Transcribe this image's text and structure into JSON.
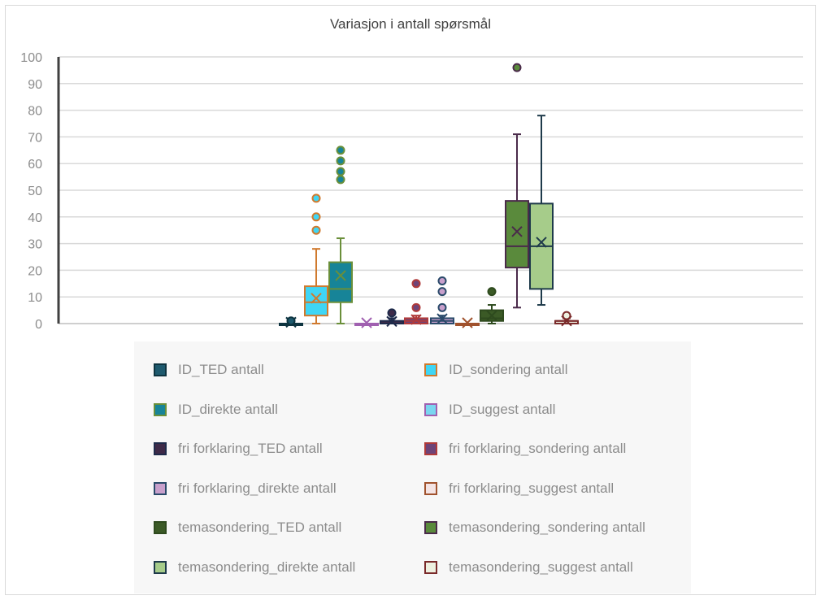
{
  "chart_data": {
    "type": "box",
    "title": "Variasjon i antall spørsmål",
    "xlabel": "",
    "ylabel": "",
    "ylim": [
      0,
      100
    ],
    "yticks": [
      0,
      10,
      20,
      30,
      40,
      50,
      60,
      70,
      80,
      90,
      100
    ],
    "grid": true,
    "legend_position": "bottom",
    "series": [
      {
        "name": "ID_TED antall",
        "fill": "#1e5a6e",
        "stroke": "#0e3440",
        "min": 0,
        "q1": 0,
        "median": 0,
        "q3": 0,
        "max": 0,
        "mean": 0.5,
        "outliers": [
          1
        ]
      },
      {
        "name": "ID_sondering antall",
        "fill": "#3fd6f5",
        "stroke": "#d07a2e",
        "min": 0,
        "q1": 3,
        "median": 8,
        "q3": 14,
        "max": 28,
        "mean": 9.5,
        "outliers": [
          35,
          40,
          47
        ]
      },
      {
        "name": "ID_direkte antall",
        "fill": "#178498",
        "stroke": "#6a8f3a",
        "min": 0,
        "q1": 8,
        "median": 13,
        "q3": 23,
        "max": 32,
        "mean": 18,
        "outliers": [
          54,
          57,
          61,
          65
        ]
      },
      {
        "name": "ID_suggest antall",
        "fill": "#7ad6f0",
        "stroke": "#a060b0",
        "min": 0,
        "q1": 0,
        "median": 0,
        "q3": 0,
        "max": 0,
        "mean": 0.3,
        "outliers": []
      },
      {
        "name": "fri forklaring_TED antall",
        "fill": "#3e2a48",
        "stroke": "#1e2a4a",
        "min": 0,
        "q1": 0,
        "median": 0,
        "q3": 1,
        "max": 2,
        "mean": 0.8,
        "outliers": [
          4
        ]
      },
      {
        "name": "fri forklaring_sondering antall",
        "fill": "#6e4478",
        "stroke": "#b03a3a",
        "min": 0,
        "q1": 0,
        "median": 1,
        "q3": 2,
        "max": 3,
        "mean": 1.5,
        "outliers": [
          6,
          15
        ]
      },
      {
        "name": "fri forklaring_direkte antall",
        "fill": "#c8a0cc",
        "stroke": "#2a4a6a",
        "min": 0,
        "q1": 0,
        "median": 1,
        "q3": 2,
        "max": 3,
        "mean": 1.8,
        "outliers": [
          6,
          12,
          16
        ]
      },
      {
        "name": "fri forklaring_suggest antall",
        "fill": "#f4e4e4",
        "stroke": "#a0522d",
        "min": 0,
        "q1": 0,
        "median": 0,
        "q3": 0,
        "max": 0,
        "mean": 0.3,
        "outliers": []
      },
      {
        "name": "temasondering_TED antall",
        "fill": "#3b5a26",
        "stroke": "#2e4a1e",
        "min": 0,
        "q1": 1,
        "median": 2,
        "q3": 5,
        "max": 7,
        "mean": 3,
        "outliers": [
          12
        ]
      },
      {
        "name": "temasondering_sondering antall",
        "fill": "#5a8a3c",
        "stroke": "#4a2a4a",
        "min": 6,
        "q1": 21,
        "median": 29,
        "q3": 46,
        "max": 71,
        "mean": 34.5,
        "outliers": [
          96
        ]
      },
      {
        "name": "temasondering_direkte antall",
        "fill": "#a6cc8a",
        "stroke": "#1e3a4a",
        "min": 7,
        "q1": 13,
        "median": 29,
        "q3": 45,
        "max": 78,
        "mean": 30.5,
        "outliers": []
      },
      {
        "name": "temasondering_suggest antall",
        "fill": "#eef0e0",
        "stroke": "#7a2a2a",
        "min": 0,
        "q1": 0,
        "median": 1,
        "q3": 1,
        "max": 2,
        "mean": 1,
        "outliers": [
          3
        ]
      }
    ]
  }
}
